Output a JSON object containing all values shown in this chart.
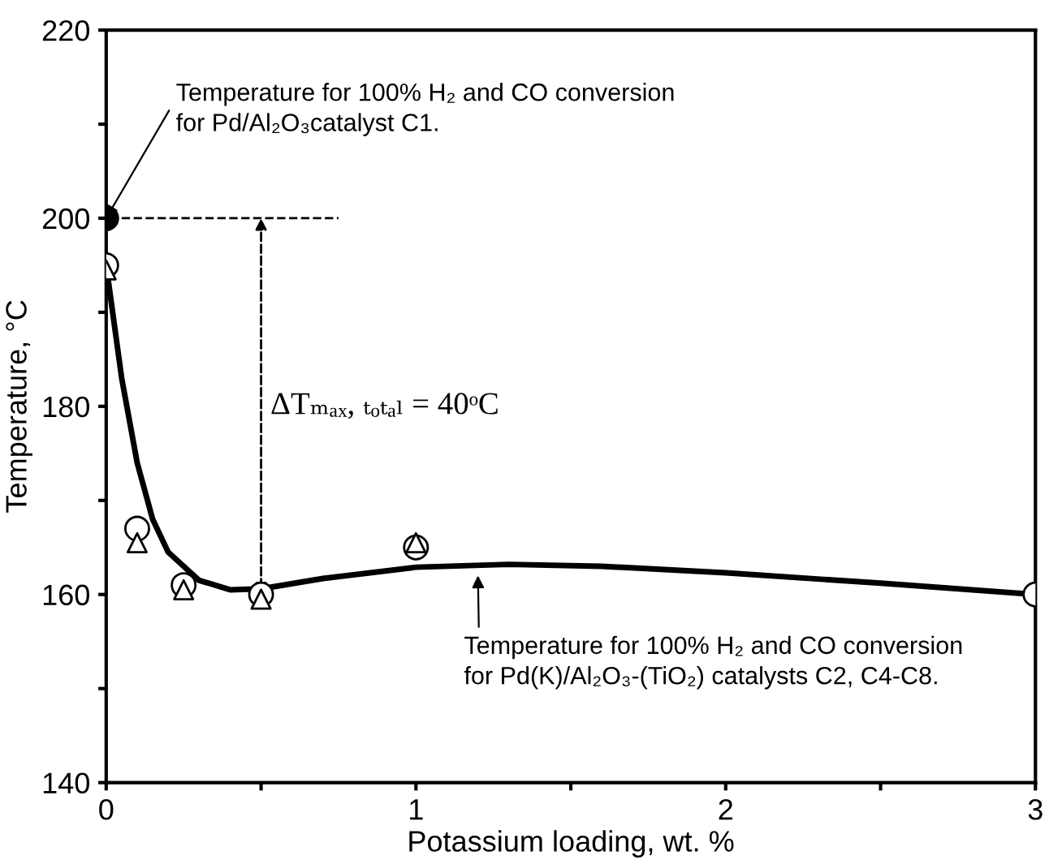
{
  "chart_data": {
    "type": "scatter",
    "xlabel": "Potassium loading, wt. %",
    "ylabel": "Temperature, °C",
    "xlim": [
      0,
      3
    ],
    "ylim": [
      140,
      220
    ],
    "xticks": [
      0,
      {
        "value": 0.5,
        "label": null
      },
      1,
      {
        "value": 1.5,
        "label": null
      },
      2,
      {
        "value": 2.5,
        "label": null
      },
      3
    ],
    "yticks": [
      140,
      {
        "value": 150,
        "label": null
      },
      160,
      {
        "value": 170,
        "label": null
      },
      180,
      {
        "value": 190,
        "label": null
      },
      200,
      {
        "value": 210,
        "label": null
      },
      220
    ],
    "grid": false,
    "series": [
      {
        "marker": "triangle",
        "color": "#ffffff",
        "x": [
          0,
          0.1,
          0.25,
          0.5,
          1
        ],
        "values": [
          194.5,
          165.5,
          160.5,
          159.5,
          165.5
        ]
      },
      {
        "marker": "circle",
        "color": "#ffffff",
        "x": [
          0,
          0.1,
          0.25,
          0.5,
          1,
          3
        ],
        "values": [
          195,
          167,
          161,
          160,
          165,
          160
        ]
      },
      {
        "marker": "circle",
        "color": "#000000",
        "x": [
          0
        ],
        "values": [
          200
        ]
      },
      {
        "type": "line",
        "marker": "none",
        "color": "#000000",
        "x": [
          0,
          0.05,
          0.1,
          0.15,
          0.2,
          0.3,
          0.4,
          0.5,
          0.7,
          1.0,
          1.3,
          1.6,
          2.0,
          2.5,
          3.0
        ],
        "values": [
          195,
          183,
          174,
          168,
          164.5,
          161.5,
          160.5,
          160.6,
          161.7,
          162.9,
          163.2,
          163.0,
          162.3,
          161.2,
          160
        ]
      }
    ],
    "annotations": [
      {
        "text": "Temperature for 100% H₂ and CO conversion\nfor Pd/Al₂O₃catalyst C1.",
        "x": 0,
        "y": 200
      },
      {
        "text": "Temperature for 100% H₂ and CO conversion\nfor Pd(K)/Al₂O₃-(TiO₂) catalysts C2, C4-C8.",
        "x": 1.2,
        "y": 162.5
      },
      "ΔTₘₐₓ, ₜₒₜₐₗ = 40ᵒC"
    ]
  }
}
